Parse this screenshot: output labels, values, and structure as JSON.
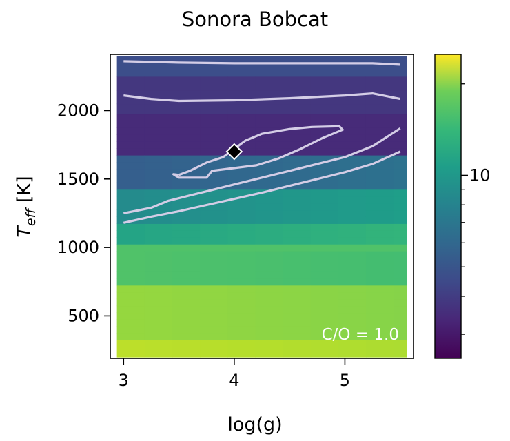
{
  "chart_data": {
    "type": "heatmap",
    "title": "Sonora Bobcat",
    "xlabel": "log(g)",
    "ylabel": {
      "main": "T",
      "sub": "eff",
      "unit": " [K]"
    },
    "xlim": [
      2.88,
      5.62
    ],
    "ylim": [
      190,
      2410
    ],
    "x_ticks": [
      3,
      4,
      5
    ],
    "x_tick_labels": [
      "3",
      "4",
      "5"
    ],
    "y_ticks": [
      500,
      1000,
      1500,
      2000
    ],
    "y_tick_labels": [
      "500",
      "1000",
      "1500",
      "2000"
    ],
    "colormap": "viridis",
    "colorbar": {
      "scale": "log",
      "tick_labels": [
        "10"
      ],
      "major_ticks": [
        10
      ],
      "minor_ticks": [
        3,
        4,
        5,
        6,
        7,
        8,
        9,
        20
      ]
    },
    "annotation": "C/O = 1.0",
    "best_fit": {
      "logg": 4.0,
      "teff": 1700,
      "marker": "diamond",
      "color": "#000000"
    },
    "contours": [
      {
        "level": 1,
        "points": [
          [
            3.5,
            1530
          ],
          [
            3.6,
            1560
          ],
          [
            3.75,
            1620
          ],
          [
            3.9,
            1660
          ],
          [
            4.0,
            1720
          ],
          [
            4.1,
            1780
          ],
          [
            4.25,
            1830
          ],
          [
            4.5,
            1865
          ],
          [
            4.7,
            1880
          ],
          [
            4.95,
            1885
          ],
          [
            4.98,
            1860
          ],
          [
            4.8,
            1800
          ],
          [
            4.6,
            1720
          ],
          [
            4.4,
            1650
          ],
          [
            4.2,
            1600
          ],
          [
            4.0,
            1580
          ],
          [
            3.8,
            1560
          ],
          [
            3.75,
            1510
          ],
          [
            3.5,
            1510
          ],
          [
            3.45,
            1535
          ],
          [
            3.5,
            1530
          ]
        ]
      },
      {
        "level": 2,
        "points": [
          [
            3.0,
            1250
          ],
          [
            3.25,
            1290
          ],
          [
            3.4,
            1340
          ],
          [
            3.6,
            1380
          ],
          [
            3.8,
            1420
          ],
          [
            4.0,
            1460
          ],
          [
            4.25,
            1510
          ],
          [
            4.5,
            1560
          ],
          [
            4.75,
            1610
          ],
          [
            5.0,
            1660
          ],
          [
            5.25,
            1740
          ],
          [
            5.5,
            1870
          ]
        ]
      },
      {
        "level": 2,
        "points": [
          [
            3.0,
            2110
          ],
          [
            3.25,
            2085
          ],
          [
            3.5,
            2070
          ],
          [
            4.0,
            2075
          ],
          [
            4.5,
            2090
          ],
          [
            5.0,
            2110
          ],
          [
            5.25,
            2125
          ],
          [
            5.5,
            2085
          ]
        ]
      },
      {
        "level": 3,
        "points": [
          [
            3.0,
            1180
          ],
          [
            3.25,
            1225
          ],
          [
            3.5,
            1265
          ],
          [
            3.75,
            1310
          ],
          [
            4.0,
            1355
          ],
          [
            4.25,
            1400
          ],
          [
            4.5,
            1450
          ],
          [
            4.75,
            1500
          ],
          [
            5.0,
            1550
          ],
          [
            5.25,
            1610
          ],
          [
            5.5,
            1700
          ]
        ]
      },
      {
        "level": 3,
        "points": [
          [
            3.0,
            2360
          ],
          [
            3.5,
            2350
          ],
          [
            4.0,
            2345
          ],
          [
            4.5,
            2345
          ],
          [
            5.0,
            2345
          ],
          [
            5.25,
            2345
          ],
          [
            5.5,
            2335
          ]
        ]
      }
    ],
    "grid_x": [
      2.94,
      3.19,
      3.44,
      3.69,
      3.94,
      4.19,
      4.44,
      4.69,
      4.94,
      5.19,
      5.44,
      5.56
    ],
    "grid_y": [
      200,
      275,
      325,
      375,
      425,
      475,
      525,
      575,
      625,
      675,
      725,
      775,
      825,
      875,
      925,
      975,
      1025,
      1075,
      1125,
      1175,
      1225,
      1275,
      1325,
      1375,
      1425,
      1475,
      1525,
      1575,
      1625,
      1675,
      1725,
      1775,
      1825,
      1875,
      1925,
      1975,
      2050,
      2150,
      2250,
      2400
    ],
    "chi2_regions": [
      {
        "teff_max": 300,
        "value": 0.9
      },
      {
        "teff_max": 700,
        "value": 0.84
      },
      {
        "teff_max": 1000,
        "value": 0.72
      },
      {
        "teff_max": 1150,
        "value": 0.58
      },
      {
        "teff_max": 1400,
        "value": 0.48
      },
      {
        "teff_max": 1650,
        "value": 0.3
      },
      {
        "teff_max": 1950,
        "value": 0.12
      },
      {
        "teff_max": 2200,
        "value": 0.16
      },
      {
        "teff_max": 2410,
        "value": 0.24
      }
    ]
  }
}
